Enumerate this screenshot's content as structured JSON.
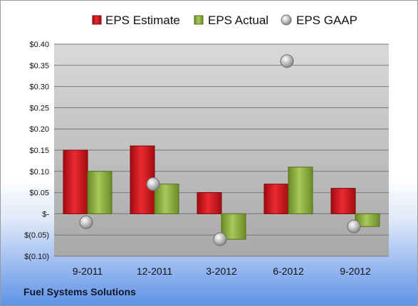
{
  "company_label": "Fuel Systems Solutions",
  "chart_data": {
    "type": "bar",
    "categories": [
      "9-2011",
      "12-2011",
      "3-2012",
      "6-2012",
      "9-2012"
    ],
    "series": [
      {
        "name": "EPS Estimate",
        "kind": "bar",
        "color": "#d0141c",
        "values": [
          0.15,
          0.16,
          0.05,
          0.07,
          0.06
        ]
      },
      {
        "name": "EPS Actual",
        "kind": "bar",
        "color": "#8fb33a",
        "values": [
          0.1,
          0.07,
          -0.06,
          0.11,
          -0.03
        ]
      },
      {
        "name": "EPS GAAP",
        "kind": "marker",
        "color": "#b8b8b8",
        "values": [
          -0.02,
          0.07,
          -0.06,
          0.36,
          -0.03
        ]
      }
    ],
    "yticks": [
      0.4,
      0.35,
      0.3,
      0.25,
      0.2,
      0.15,
      0.1,
      0.05,
      0,
      -0.05,
      -0.1
    ],
    "ytick_labels": [
      "$0.40",
      "$0.35",
      "$0.30",
      "$0.25",
      "$0.20",
      "$0.15",
      "$0.10",
      "$0.05",
      "$-",
      "$(0.05)",
      "$(0.10)"
    ],
    "ylim": [
      -0.1,
      0.4
    ],
    "grid": true,
    "legend_position": "top"
  }
}
